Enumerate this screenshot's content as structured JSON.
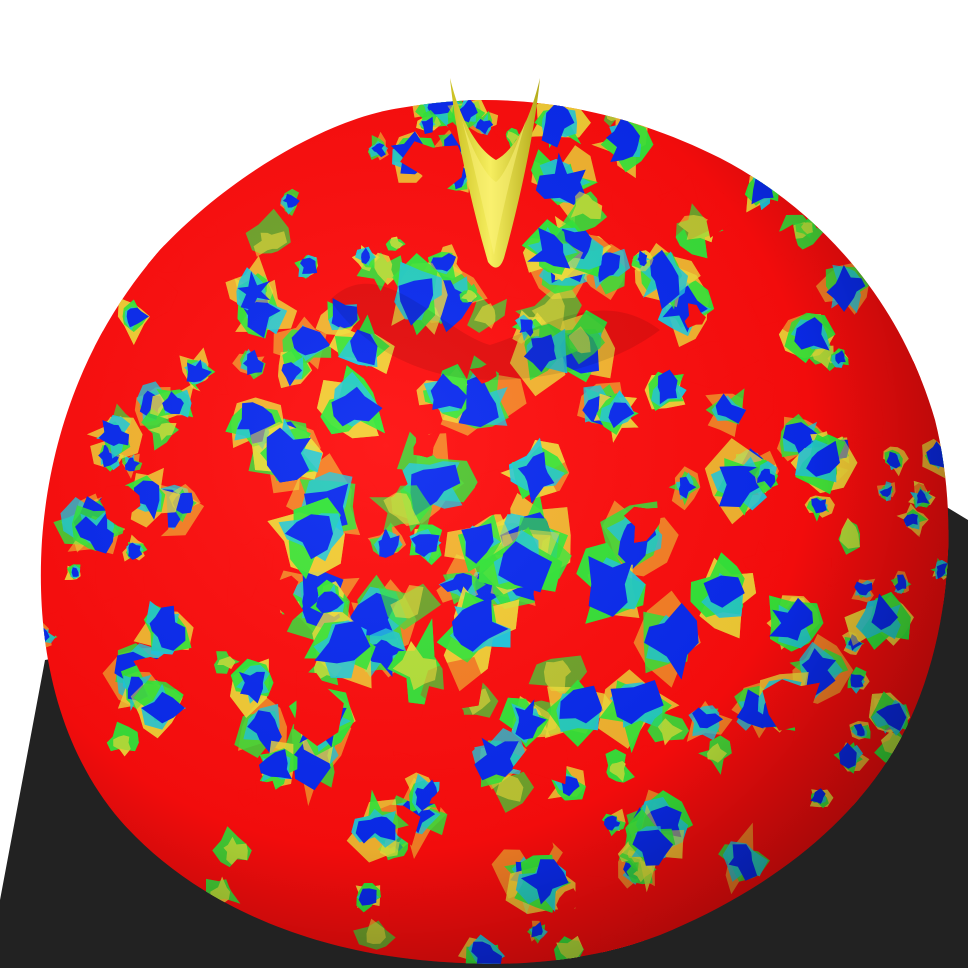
{
  "scene": {
    "background_color": "#ffffff",
    "floor_color": "#222222",
    "stem_color": "#e8e038",
    "stem_shadow_color": "#b8b020",
    "palette": {
      "red": "#ff0d0d",
      "blue": "#0a2bf0",
      "green": "#34e63a",
      "cyan": "#20c8e0",
      "yellow": "#f2e03a"
    }
  }
}
